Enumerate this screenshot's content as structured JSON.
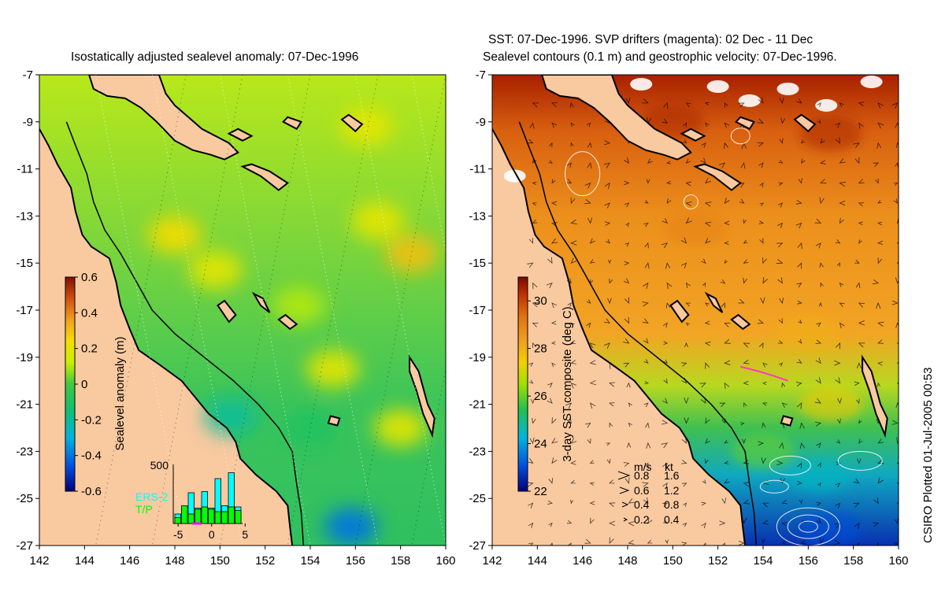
{
  "left_panel": {
    "title": "Isostatically adjusted sealevel anomaly: 07-Dec-1996",
    "colorbar": {
      "label": "Sealevel anomaly (m)",
      "ticks": [
        "0.6",
        "0.4",
        "0.2",
        "0",
        "-0.2",
        "-0.4",
        "-0.6"
      ],
      "range": [
        -0.6,
        0.6
      ]
    },
    "inset": {
      "ymax_label": "500",
      "legend": [
        "ERS-2",
        "T/P"
      ],
      "legend_colors": [
        "#00ffff",
        "#00ff00"
      ],
      "xticks": [
        "-5",
        "0",
        "5"
      ]
    }
  },
  "right_panel": {
    "title_line1": "SST: 07-Dec-1996. SVP drifters (magenta): 02 Dec - 11 Dec",
    "title_line2": "Sealevel contours (0.1 m) and geostrophic velocity: 07-Dec-1996.",
    "colorbar": {
      "label": "3-day SST composite (deg C)",
      "ticks": [
        "30",
        "28",
        "26",
        "24",
        "22"
      ],
      "range": [
        22,
        31
      ]
    },
    "velocity_legend": {
      "header_ms": "m/s",
      "header_kt": "kt",
      "rows": [
        {
          "ms": "0.8",
          "kt": "1.6"
        },
        {
          "ms": "0.6",
          "kt": "1.2"
        },
        {
          "ms": "0.4",
          "kt": "0.8"
        },
        {
          "ms": "0.2",
          "kt": "0.4"
        }
      ]
    }
  },
  "axes": {
    "x_ticks": [
      "142",
      "144",
      "146",
      "148",
      "150",
      "152",
      "154",
      "156",
      "158",
      "160"
    ],
    "y_ticks": [
      "-7",
      "-9",
      "-11",
      "-13",
      "-15",
      "-17",
      "-19",
      "-21",
      "-23",
      "-25",
      "-27"
    ]
  },
  "credit": "CSIRO Plotted 01-Jul-2005 00:53",
  "colors": {
    "land": "#f9c9a0",
    "ocean_mid": "#33c24a",
    "coast": "#000000",
    "drifter": "#ff33cc"
  },
  "chart_data": [
    {
      "type": "heatmap",
      "title": "Isostatically adjusted sealevel anomaly: 07-Dec-1996",
      "xlim": [
        142,
        160
      ],
      "ylim": [
        -27,
        -7
      ],
      "colorbar_label": "Sealevel anomaly (m)",
      "colorbar_range": [
        -0.6,
        0.6
      ],
      "features": [
        {
          "x": 148.0,
          "y": -13.8,
          "value": 0.25
        },
        {
          "x": 149.8,
          "y": -15.3,
          "value": 0.2
        },
        {
          "x": 158.5,
          "y": -14.6,
          "value": 0.3
        },
        {
          "x": 156.5,
          "y": -9.2,
          "value": 0.2
        },
        {
          "x": 157.0,
          "y": -13.2,
          "value": 0.2
        },
        {
          "x": 155.0,
          "y": -19.5,
          "value": 0.2
        },
        {
          "x": 158.0,
          "y": -22.0,
          "value": 0.2
        },
        {
          "x": 153.5,
          "y": -16.8,
          "value": 0.1
        },
        {
          "x": 155.8,
          "y": -26.2,
          "value": -0.4
        },
        {
          "x": 154.0,
          "y": -22.0,
          "value": -0.1
        },
        {
          "x": 150.5,
          "y": -21.5,
          "value": -0.2
        }
      ]
    },
    {
      "type": "bar",
      "title": "",
      "xticks": [
        -5,
        0,
        5
      ],
      "ymax": 500,
      "categories": [
        -5,
        -4,
        -3,
        -2,
        -1,
        0,
        1,
        2,
        3,
        4
      ],
      "series": [
        {
          "name": "T/P",
          "values": [
            50,
            150,
            80,
            120,
            140,
            120,
            100,
            100,
            140,
            110
          ]
        },
        {
          "name": "ERS-2",
          "values": [
            80,
            140,
            260,
            130,
            270,
            130,
            380,
            150,
            430,
            140
          ]
        }
      ]
    },
    {
      "type": "heatmap",
      "title": "SST: 07-Dec-1996. SVP drifters (magenta): 02 Dec - 11 Dec",
      "subtitle": "Sealevel contours (0.1 m) and geostrophic velocity: 07-Dec-1996.",
      "xlim": [
        142,
        160
      ],
      "ylim": [
        -27,
        -7
      ],
      "colorbar_label": "3-day SST composite (deg C)",
      "colorbar_range": [
        22,
        31
      ],
      "features": [
        {
          "x": 150.0,
          "y": -9.0,
          "value": 30.5
        },
        {
          "x": 157.0,
          "y": -9.5,
          "value": 30.5
        },
        {
          "x": 151.0,
          "y": -13.5,
          "value": 29.0
        },
        {
          "x": 156.0,
          "y": -18.0,
          "value": 28.0
        },
        {
          "x": 157.0,
          "y": -21.0,
          "value": 27.5
        },
        {
          "x": 154.0,
          "y": -23.0,
          "value": 26.0
        },
        {
          "x": 156.5,
          "y": -24.0,
          "value": 24.5
        },
        {
          "x": 157.0,
          "y": -26.3,
          "value": 23.0
        }
      ],
      "drifter_track": {
        "x": [
          153.0,
          153.8,
          154.5,
          155.1
        ],
        "y": [
          -19.4,
          -19.6,
          -19.8,
          -20.0
        ]
      }
    }
  ]
}
